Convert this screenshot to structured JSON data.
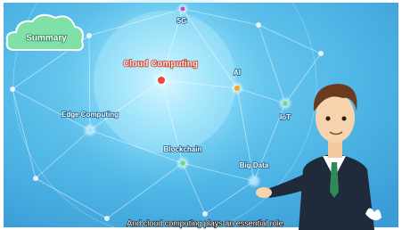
{
  "badge": {
    "label": "Summary"
  },
  "nodes": [
    {
      "label": "5G"
    },
    {
      "label": "Cloud Computing"
    },
    {
      "label": "AI"
    },
    {
      "label": "Edge Computing"
    },
    {
      "label": "IoT"
    },
    {
      "label": "Blockchain"
    },
    {
      "label": "Big Data"
    }
  ],
  "caption": "And cloud computing plays an essential role"
}
